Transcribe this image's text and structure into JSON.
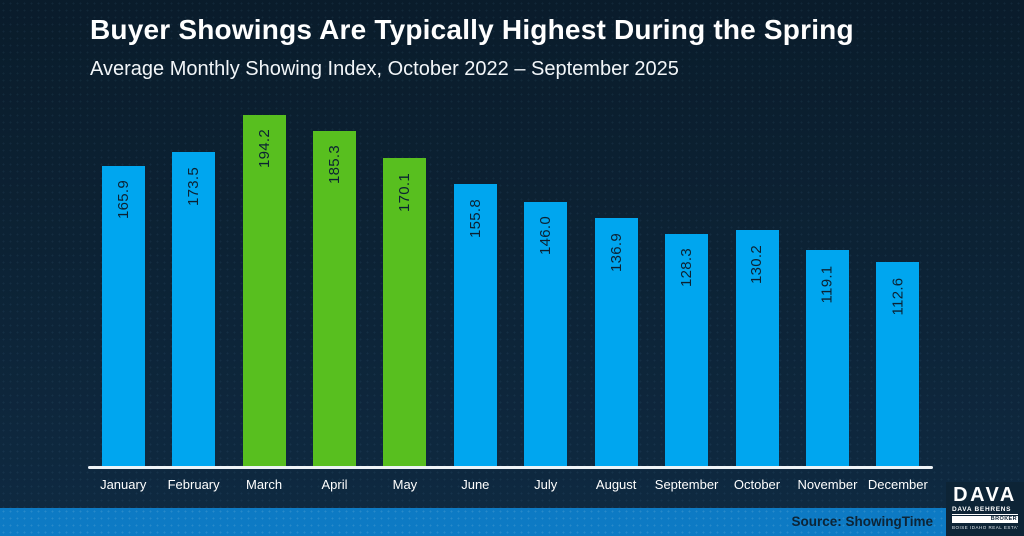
{
  "header": {
    "title": "Buyer Showings Are Typically Highest During the Spring",
    "subtitle": "Average Monthly Showing Index, October 2022 – September 2025"
  },
  "chart_data": {
    "type": "bar",
    "title": "Buyer Showings Are Typically Highest During the Spring",
    "subtitle": "Average Monthly Showing Index, October 2022 – September 2025",
    "categories": [
      "January",
      "February",
      "March",
      "April",
      "May",
      "June",
      "July",
      "August",
      "September",
      "October",
      "November",
      "December"
    ],
    "values": [
      165.9,
      173.5,
      194.2,
      185.3,
      170.1,
      155.8,
      146.0,
      136.9,
      128.3,
      130.2,
      119.1,
      112.6
    ],
    "value_labels": [
      "165.9",
      "173.5",
      "194.2",
      "185.3",
      "170.1",
      "155.8",
      "146.0",
      "136.9",
      "128.3",
      "130.2",
      "119.1",
      "112.6"
    ],
    "highlighted_categories": [
      "March",
      "April",
      "May"
    ],
    "ylim": [
      0,
      200
    ],
    "gridlines": false,
    "legend": "none",
    "data_label_style": "rotated 90 degrees, inside top of bar",
    "colors": {
      "bar_default": "#00a6ef",
      "bar_highlight": "#58bf1f",
      "data_label_text": "#0c2233",
      "axis_line": "#eef3f6",
      "background_navy": "#0c2234",
      "footer_strip_blue": "#0d7ac4"
    }
  },
  "footer": {
    "source": "Source: ShowingTime"
  },
  "logo": {
    "name": "DAVA",
    "subtitle": "DAVA BEHRENS",
    "broker_label": "BROKER",
    "tagline": "BOISE IDAHO REAL ESTATE"
  }
}
